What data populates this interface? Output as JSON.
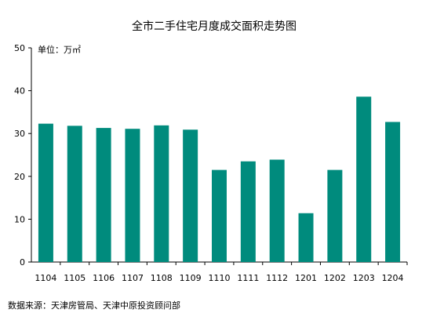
{
  "chart_data": {
    "type": "bar",
    "title": "全市二手住宅月度成交面积走势图",
    "unit_label": "单位：万㎡",
    "categories": [
      "1104",
      "1105",
      "1106",
      "1107",
      "1108",
      "1109",
      "1110",
      "1111",
      "1112",
      "1201",
      "1202",
      "1203",
      "1204"
    ],
    "values": [
      32.3,
      31.8,
      31.3,
      31.1,
      31.9,
      30.9,
      21.5,
      23.5,
      23.9,
      11.4,
      21.5,
      38.6,
      32.7
    ],
    "ylim": [
      0,
      50
    ],
    "yticks": [
      0,
      10,
      20,
      30,
      40,
      50
    ],
    "bar_color": "#008B7D",
    "grid": false,
    "source": "数据来源：天津房管局、天津中原投资顾问部"
  }
}
